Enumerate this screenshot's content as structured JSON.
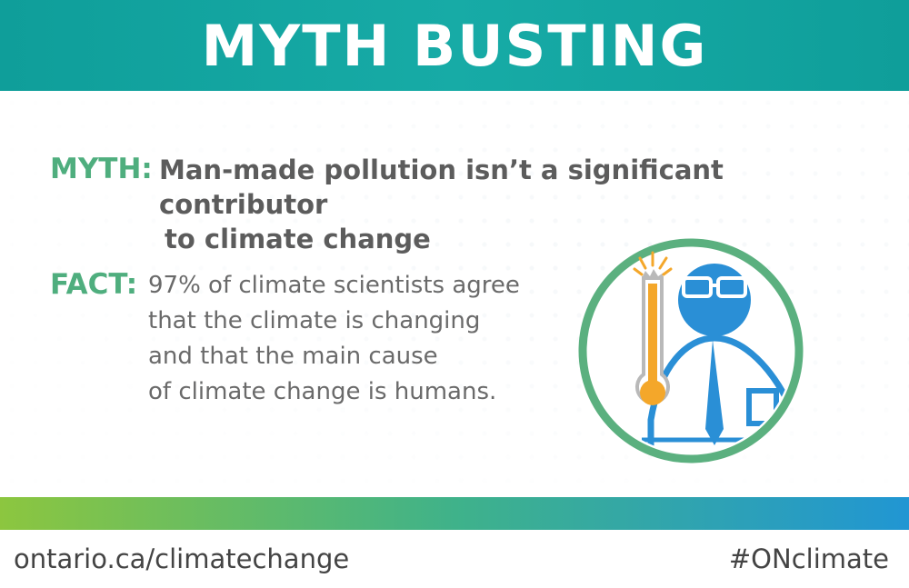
{
  "header": {
    "title": "MYTH BUSTING"
  },
  "myth": {
    "label": "MYTH:",
    "line1": "Man-made pollution isn’t a significant contributor",
    "line2": "to climate change"
  },
  "fact": {
    "label": "FACT:",
    "lines": [
      "97% of climate scientists agree",
      "that the climate is changing",
      "and that the main cause",
      "of climate change is humans."
    ]
  },
  "illustration": {
    "icon": "scientist-thermometer-icon"
  },
  "footer": {
    "url": "ontario.ca/climatechange",
    "hashtag": "#ONclimate"
  },
  "colors": {
    "header": "#17aba6",
    "label_green": "#4fae7e",
    "ring": "#5bb07f",
    "figure_blue": "#2a8fd6",
    "thermometer_orange": "#f4a72a"
  }
}
